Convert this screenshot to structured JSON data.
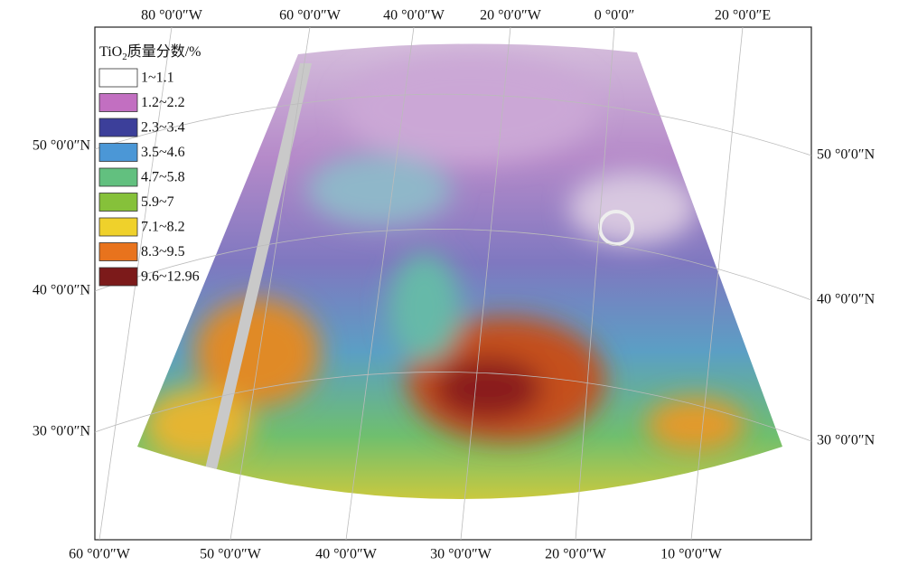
{
  "legend": {
    "title": {
      "chem": "TiO",
      "sub": "2",
      "rest": "质量分数/%"
    },
    "items": [
      {
        "label": "1~1.1",
        "color": "#ffffff"
      },
      {
        "label": "1.2~2.2",
        "color": "#c26fc1"
      },
      {
        "label": "2.3~3.4",
        "color": "#3c3f9a"
      },
      {
        "label": "3.5~4.6",
        "color": "#4b97d6"
      },
      {
        "label": "4.7~5.8",
        "color": "#62c07f"
      },
      {
        "label": "5.9~7",
        "color": "#86c13a"
      },
      {
        "label": "7.1~8.2",
        "color": "#efd12b"
      },
      {
        "label": "8.3~9.5",
        "color": "#e8731d"
      },
      {
        "label": "9.6~12.96",
        "color": "#7c1a1a"
      }
    ]
  },
  "top_labels": [
    "80 °0′0″W",
    "60 °0′0″W",
    "40 °0′0″W",
    "20 °0′0″W",
    "0 °0′0″",
    "20 °0′0″E"
  ],
  "bottom_labels": [
    "60 °0′0″W",
    "50 °0′0″W",
    "40 °0′0″W",
    "30 °0′0″W",
    "20 °0′0″W",
    "10 °0′0″W"
  ],
  "left_labels": [
    "50 °0′0″N",
    "40 °0′0″N",
    "30 °0′0″N"
  ],
  "right_labels": [
    "50 °0′0″N",
    "40 °0′0″N",
    "30 °0′0″N"
  ]
}
